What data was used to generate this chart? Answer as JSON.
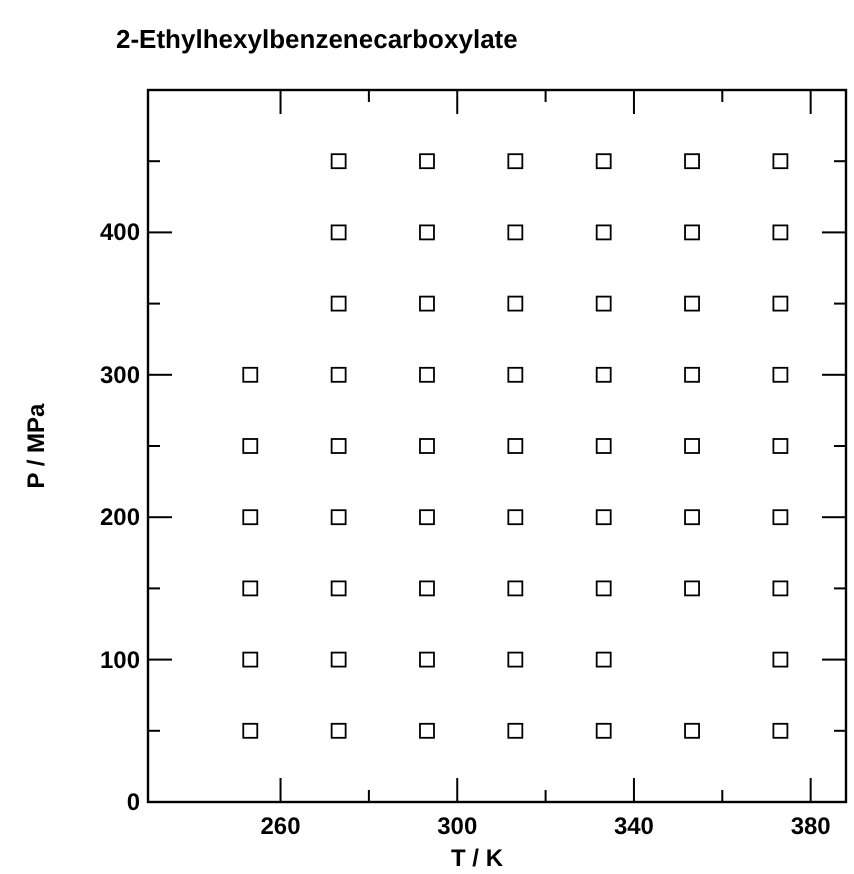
{
  "chart_data": {
    "type": "scatter",
    "title": "2-Ethylhexylbenzenecarboxylate",
    "xlabel": "T / K",
    "ylabel": "P / MPa",
    "series": [
      {
        "color": "#000000",
        "x": [
          273.15,
          293.15,
          313.15,
          333.15,
          353.15,
          373.15,
          273.15,
          293.15,
          313.15,
          333.15,
          353.15,
          373.15,
          273.15,
          293.15,
          313.15,
          333.15,
          353.15,
          373.15,
          253.15,
          273.15,
          293.15,
          313.15,
          333.15,
          353.15,
          373.15,
          253.15,
          273.15,
          293.15,
          313.15,
          333.15,
          353.15,
          373.15,
          253.15,
          273.15,
          293.15,
          313.15,
          333.15,
          353.15,
          373.15,
          253.15,
          273.15,
          293.15,
          313.15,
          333.15,
          353.15,
          373.15,
          253.15,
          273.15,
          293.15,
          313.15,
          333.15,
          373.15,
          253.15,
          273.15,
          293.15,
          313.15,
          333.15,
          353.15,
          373.15
        ],
        "values": [
          450,
          450,
          450,
          450,
          450,
          450,
          400,
          400,
          400,
          400,
          400,
          400,
          350,
          350,
          350,
          350,
          350,
          350,
          300,
          300,
          300,
          300,
          300,
          300,
          300,
          250,
          250,
          250,
          250,
          250,
          250,
          250,
          200,
          200,
          200,
          200,
          200,
          200,
          200,
          150,
          150,
          150,
          150,
          150,
          150,
          150,
          100,
          100,
          100,
          100,
          100,
          100,
          50,
          50,
          50,
          50,
          50,
          50,
          50
        ]
      }
    ],
    "marker": "square",
    "xlim": [
      230,
      388
    ],
    "ylim": [
      0,
      500
    ],
    "xticks": [
      260,
      {
        "value": 280,
        "label": null
      },
      300,
      {
        "value": 320,
        "label": null
      },
      340,
      {
        "value": 360,
        "label": null
      },
      380
    ],
    "yticks": [
      0,
      {
        "value": 50,
        "label": null
      },
      100,
      {
        "value": 150,
        "label": null
      },
      200,
      {
        "value": 250,
        "label": null
      },
      300,
      {
        "value": 350,
        "label": null
      },
      400,
      {
        "value": 450,
        "label": null
      }
    ],
    "tick_labels": true
  }
}
